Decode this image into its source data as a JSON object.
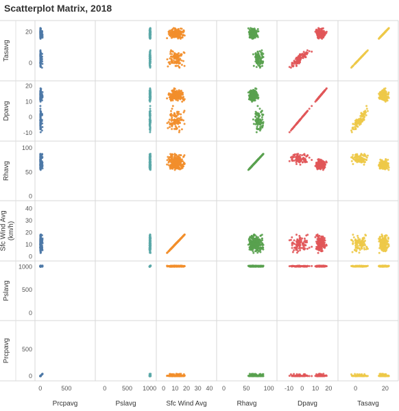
{
  "title": "Scatterplot Matrix, 2018",
  "chart_data": {
    "type": "scatter",
    "title": "Scatterplot Matrix, 2018",
    "columns": [
      {
        "key": "prcpavg",
        "label": "Prcpavg",
        "color": "#4e79a7",
        "ticks": [
          0,
          500
        ],
        "range": [
          -50,
          1000
        ]
      },
      {
        "key": "pslavg",
        "label": "Pslavg",
        "color": "#5ba8a8",
        "ticks": [
          0,
          500,
          1000
        ],
        "range": [
          -150,
          1090
        ]
      },
      {
        "key": "sfcwind",
        "label": "Sfc Wind Avg",
        "color": "#f28e2b",
        "ticks": [
          0,
          10,
          20,
          30,
          40
        ],
        "range": [
          -4,
          44
        ]
      },
      {
        "key": "rhavg",
        "label": "Rhavg",
        "color": "#59a14f",
        "ticks": [
          0,
          50,
          100
        ],
        "range": [
          -10,
          112
        ]
      },
      {
        "key": "dpavg",
        "label": "Dpavg",
        "color": "#e15759",
        "ticks": [
          -10,
          0,
          10,
          20
        ],
        "range": [
          -17,
          25
        ]
      },
      {
        "key": "tasavg",
        "label": "Tasavg",
        "color": "#edc948",
        "ticks": [
          0,
          20
        ],
        "range": [
          -10,
          27
        ]
      }
    ],
    "rows": [
      {
        "key": "tasavg",
        "label": "Tasavg",
        "ticks": [
          0,
          20
        ],
        "range": [
          -10,
          26
        ]
      },
      {
        "key": "dpavg",
        "label": "Dpavg",
        "ticks": [
          -10,
          0,
          10,
          20
        ],
        "range": [
          -14,
          22
        ]
      },
      {
        "key": "rhavg",
        "label": "Rhavg",
        "ticks": [
          0,
          50,
          100
        ],
        "range": [
          -5,
          110
        ]
      },
      {
        "key": "sfcwind",
        "label": "Sfc Wind Avg (km/h)",
        "ticks": [
          0,
          10,
          20,
          30,
          40
        ],
        "range": [
          -2,
          45
        ]
      },
      {
        "key": "pslavg",
        "label": "Pslavg",
        "ticks": [
          0,
          500,
          1000
        ],
        "range": [
          -120,
          1080
        ]
      },
      {
        "key": "prcpavg",
        "label": "Prcpavg",
        "ticks": [
          0,
          500
        ],
        "range": [
          -50,
          1000
        ]
      }
    ],
    "xlabel": "",
    "ylabel": "",
    "legend": "none",
    "grid": true
  }
}
